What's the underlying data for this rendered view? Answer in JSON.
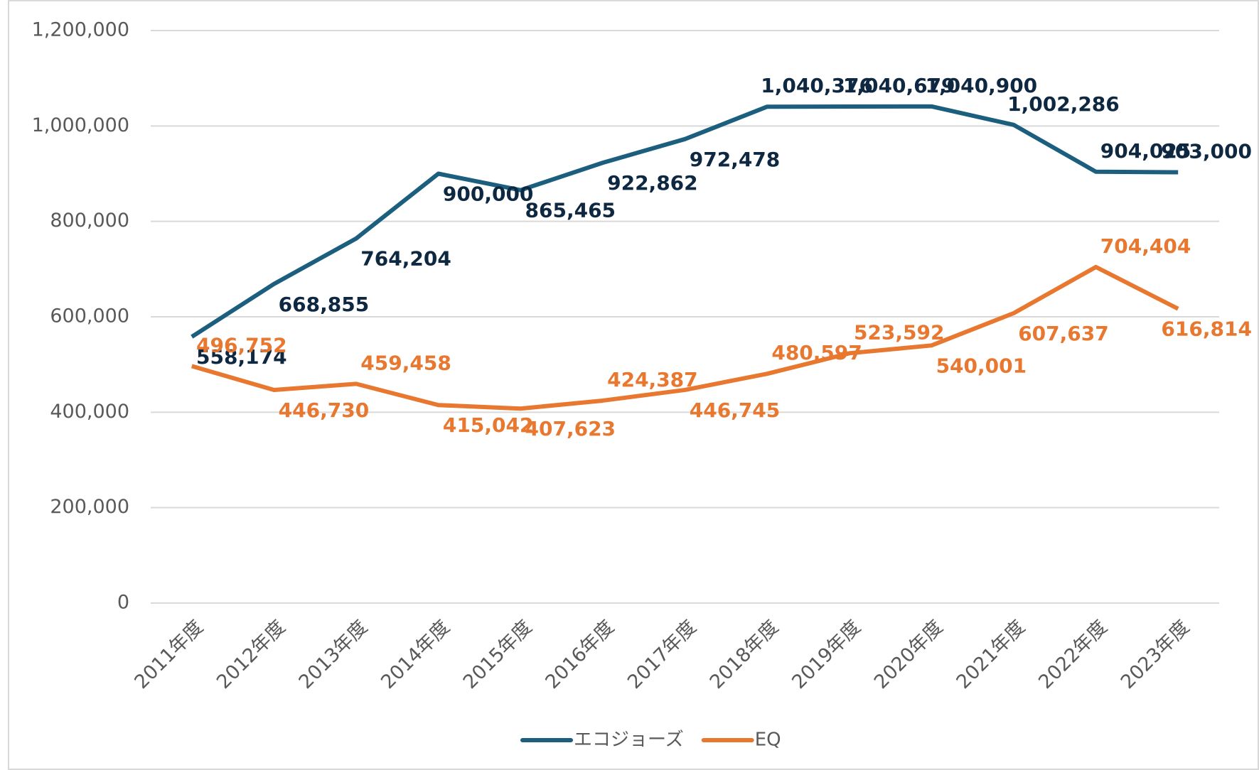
{
  "chart_data": {
    "type": "line",
    "categories": [
      "2011年度",
      "2012年度",
      "2013年度",
      "2014年度",
      "2015年度",
      "2016年度",
      "2017年度",
      "2018年度",
      "2019年度",
      "2020年度",
      "2021年度",
      "2022年度",
      "2023年度"
    ],
    "series": [
      {
        "name": "エコジョーズ",
        "color": "#1b5e7e",
        "values": [
          558174,
          668855,
          764204,
          900000,
          865465,
          922862,
          972478,
          1040376,
          1040679,
          1040900,
          1002286,
          904025,
          903000
        ],
        "value_labels": [
          "558,174",
          "668,855",
          "764,204",
          "900,000",
          "865,465",
          "922,862",
          "972,478",
          "1,040,376",
          "1,040,679",
          "1,040,900",
          "1,002,286",
          "904,025",
          "903,000"
        ]
      },
      {
        "name": "EQ",
        "color": "#e8782f",
        "values": [
          496752,
          446730,
          459458,
          415042,
          407623,
          424387,
          446745,
          480597,
          523592,
          540001,
          607637,
          704404,
          616814
        ],
        "value_labels": [
          "496,752",
          "446,730",
          "459,458",
          "415,042",
          "407,623",
          "424,387",
          "446,745",
          "480,597",
          "523,592",
          "540,001",
          "607,637",
          "704,404",
          "616,814"
        ]
      }
    ],
    "ylim": [
      0,
      1200000
    ],
    "yticks": [
      0,
      {
        "value": 200000,
        "label": "200,000"
      },
      {
        "value": 400000,
        "label": "400,000"
      },
      {
        "value": 600000,
        "label": "600,000"
      },
      {
        "value": 800000,
        "label": "800,000"
      },
      {
        "value": 1000000,
        "label": "1,000,000"
      },
      {
        "value": 1200000,
        "label": "1,200,000"
      }
    ],
    "grid": true,
    "legend": "bottom"
  }
}
